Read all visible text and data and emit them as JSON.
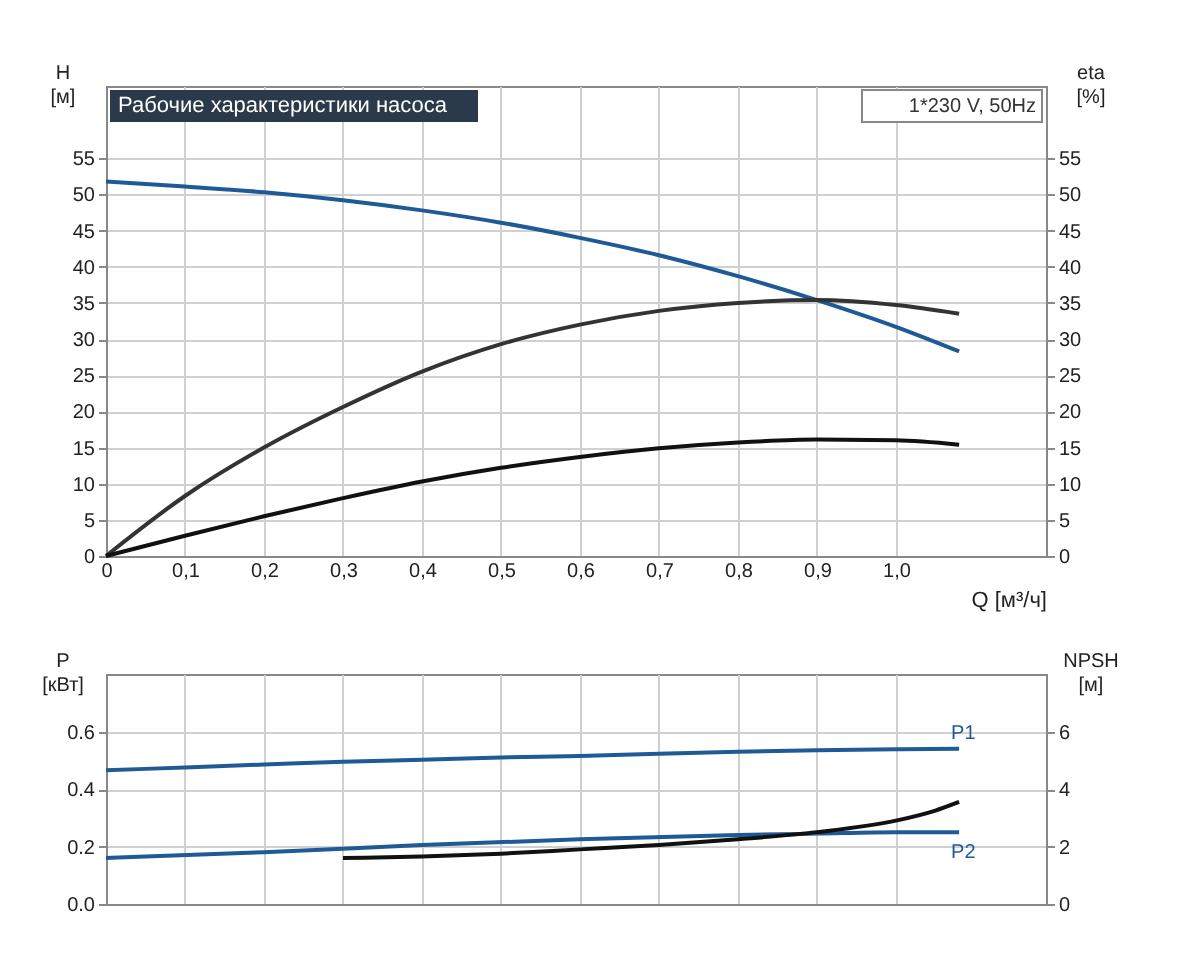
{
  "chart_data": [
    {
      "type": "line",
      "title": "Рабочие характеристики насоса",
      "xlabel": "Q [м³/ч]",
      "ylabel": "H [м]",
      "y2label": "eta [%]",
      "annotations": [
        "1*230 V, 50Hz"
      ],
      "xlim": [
        0,
        1.19
      ],
      "xticks": [
        {
          "value": 0,
          "label": "0"
        },
        {
          "value": 0.1,
          "label": "0,1"
        },
        {
          "value": 0.2,
          "label": "0,2"
        },
        {
          "value": 0.3,
          "label": "0,3"
        },
        {
          "value": 0.4,
          "label": "0,4"
        },
        {
          "value": 0.5,
          "label": "0,5"
        },
        {
          "value": 0.6,
          "label": "0,6"
        },
        {
          "value": 0.7,
          "label": "0,7"
        },
        {
          "value": 0.8,
          "label": "0,8"
        },
        {
          "value": 0.9,
          "label": "0,9"
        },
        {
          "value": 1.0,
          "label": "1,0"
        }
      ],
      "ylim": [
        0,
        65
      ],
      "yticks": [
        0,
        5,
        10,
        15,
        20,
        25,
        30,
        35,
        40,
        45,
        50,
        55
      ],
      "y2lim": [
        0,
        65
      ],
      "y2ticks": [
        0,
        5,
        10,
        15,
        20,
        25,
        30,
        35,
        40,
        45,
        50,
        55
      ],
      "grid": true,
      "series": [
        {
          "color": "#1f5a96",
          "axis": "y",
          "x": [
            0,
            0.1,
            0.2,
            0.3,
            0.4,
            0.5,
            0.6,
            0.7,
            0.8,
            0.9,
            1.0,
            1.08
          ],
          "values": [
            51.8,
            51.1,
            50.3,
            49.2,
            47.8,
            46.1,
            44.0,
            41.6,
            38.7,
            35.4,
            31.7,
            28.3
          ]
        },
        {
          "color": "#333333",
          "axis": "y2",
          "x": [
            0,
            0.1,
            0.2,
            0.3,
            0.4,
            0.5,
            0.6,
            0.7,
            0.8,
            0.9,
            1.0,
            1.08
          ],
          "values": [
            0,
            8.3,
            15,
            20.6,
            25.5,
            29.3,
            32,
            33.9,
            35,
            35.4,
            34.7,
            33.5
          ]
        },
        {
          "color": "#111111",
          "axis": "y2",
          "x": [
            0,
            0.1,
            0.2,
            0.3,
            0.4,
            0.5,
            0.6,
            0.7,
            0.8,
            0.9,
            1.0,
            1.08
          ],
          "values": [
            0,
            2.8,
            5.5,
            8,
            10.3,
            12.2,
            13.7,
            14.9,
            15.7,
            16.1,
            16,
            15.4
          ]
        }
      ]
    },
    {
      "type": "line",
      "ylabel": "P [кВт]",
      "y2label": "NPSH [м]",
      "tick_labels": "y",
      "xlim": [
        0,
        1.19
      ],
      "xticks": [
        0,
        0.1,
        0.2,
        0.3,
        0.4,
        0.5,
        0.6,
        0.7,
        0.8,
        0.9,
        1.0
      ],
      "ylim": [
        0,
        0.8
      ],
      "yticks": [
        {
          "value": 0,
          "label": "0.0"
        },
        {
          "value": 0.2,
          "label": "0.2"
        },
        {
          "value": 0.4,
          "label": "0.4"
        },
        {
          "value": 0.6,
          "label": "0.6"
        }
      ],
      "y2lim": [
        0,
        8
      ],
      "y2ticks": [
        0,
        2,
        4,
        6
      ],
      "grid": true,
      "series": [
        {
          "name": "P1",
          "color": "#1f5a96",
          "axis": "y",
          "x": [
            0,
            0.1,
            0.2,
            0.3,
            0.4,
            0.5,
            0.6,
            0.7,
            0.8,
            0.9,
            1.0,
            1.08
          ],
          "values": [
            0.465,
            0.475,
            0.485,
            0.495,
            0.502,
            0.51,
            0.515,
            0.523,
            0.53,
            0.535,
            0.538,
            0.54
          ]
        },
        {
          "name": "P2",
          "color": "#1f5a96",
          "axis": "y",
          "x": [
            0,
            0.2,
            0.4,
            0.6,
            0.8,
            0.9,
            1.0,
            1.08
          ],
          "values": [
            0.16,
            0.18,
            0.205,
            0.225,
            0.24,
            0.245,
            0.25,
            0.25
          ]
        },
        {
          "color": "#111111",
          "axis": "y2",
          "x": [
            0.3,
            0.4,
            0.5,
            0.6,
            0.7,
            0.8,
            0.9,
            1.0,
            1.05,
            1.08
          ],
          "values": [
            1.6,
            1.65,
            1.75,
            1.9,
            2.05,
            2.25,
            2.5,
            2.9,
            3.25,
            3.55
          ]
        }
      ]
    }
  ]
}
